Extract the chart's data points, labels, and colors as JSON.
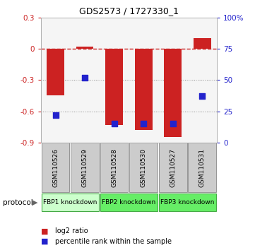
{
  "title": "GDS2573 / 1727330_1",
  "samples": [
    "GSM110526",
    "GSM110529",
    "GSM110528",
    "GSM110530",
    "GSM110527",
    "GSM110531"
  ],
  "log2_ratios": [
    -0.45,
    0.02,
    -0.73,
    -0.78,
    -0.85,
    0.1
  ],
  "percentile_ranks": [
    22,
    52,
    15,
    15,
    15,
    37
  ],
  "left_ylim": [
    -0.9,
    0.3
  ],
  "left_yticks": [
    0.3,
    0.0,
    -0.3,
    -0.6,
    -0.9
  ],
  "left_yticklabels": [
    "0.3",
    "0",
    "-0.3",
    "-0.6",
    "-0.9"
  ],
  "right_ylim": [
    0,
    100
  ],
  "right_yticks": [
    0,
    25,
    50,
    75,
    100
  ],
  "right_yticklabels": [
    "0",
    "25",
    "50",
    "75",
    "100%"
  ],
  "bar_color": "#cc2222",
  "square_color": "#2222cc",
  "zero_line_color": "#cc2222",
  "dot_line_color": "#888888",
  "bg_color": "#f5f5f5",
  "protocol_groups": [
    {
      "label": "FBP1 knockdown",
      "start": 0,
      "end": 2,
      "color": "#ccffcc"
    },
    {
      "label": "FBP2 knockdown",
      "start": 2,
      "end": 4,
      "color": "#66ee66"
    },
    {
      "label": "FBP3 knockdown",
      "start": 4,
      "end": 6,
      "color": "#66ee66"
    }
  ],
  "legend_items": [
    {
      "label": "log2 ratio",
      "color": "#cc2222"
    },
    {
      "label": "percentile rank within the sample",
      "color": "#2222cc"
    }
  ],
  "protocol_label": "protocol"
}
